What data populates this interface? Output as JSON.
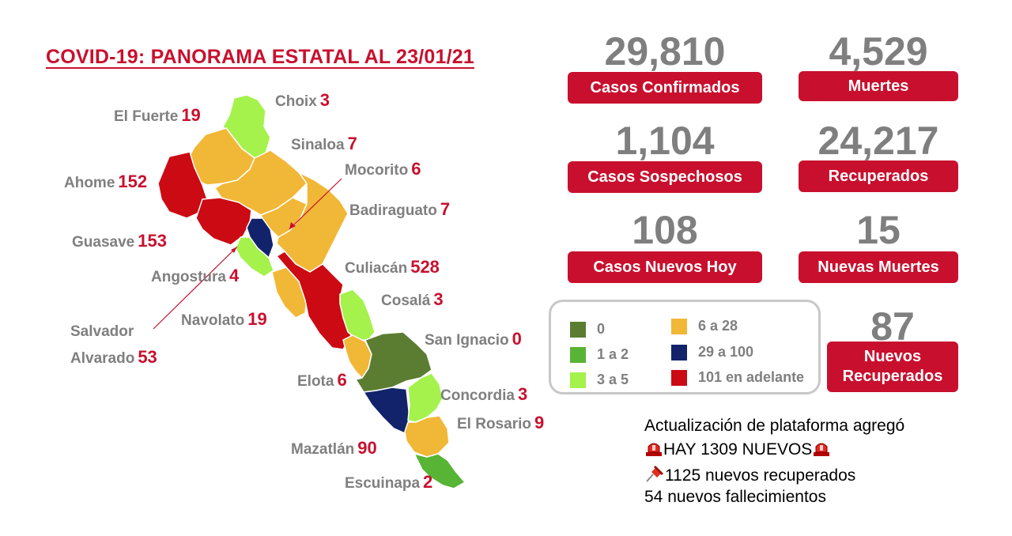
{
  "title": "COVID-19: PANORAMA ESTATAL AL 23/01/21",
  "stats": {
    "confirmados": {
      "value": "29,810",
      "label": "Casos Confirmados"
    },
    "muertes": {
      "value": "4,529",
      "label": "Muertes"
    },
    "sospechosos": {
      "value": "1,104",
      "label": "Casos Sospechosos"
    },
    "recuperados": {
      "value": "24,217",
      "label": "Recuperados"
    },
    "nuevos_hoy": {
      "value": "108",
      "label": "Casos Nuevos Hoy"
    },
    "nuevas_muertes": {
      "value": "15",
      "label": "Nuevas Muertes"
    },
    "nuevos_recuperados": {
      "value": "87",
      "label_line1": "Nuevos",
      "label_line2": "Recuperados"
    }
  },
  "municipalities": {
    "choix": {
      "name": "Choix",
      "value": "3"
    },
    "el_fuerte": {
      "name": "El Fuerte",
      "value": "19"
    },
    "sinaloa": {
      "name": "Sinaloa",
      "value": "7"
    },
    "mocorito": {
      "name": "Mocorito",
      "value": "6"
    },
    "ahome": {
      "name": "Ahome",
      "value": "152"
    },
    "badiraguato": {
      "name": "Badiraguato",
      "value": "7"
    },
    "guasave": {
      "name": "Guasave",
      "value": "153"
    },
    "angostura": {
      "name": "Angostura",
      "value": "4"
    },
    "culiacan": {
      "name": "Culiacán",
      "value": "528"
    },
    "cosala": {
      "name": "Cosalá",
      "value": "3"
    },
    "salvador_alvarado": {
      "name_line1": "Salvador",
      "name_line2": "Alvarado",
      "value": "53"
    },
    "navolato": {
      "name": "Navolato",
      "value": "19"
    },
    "san_ignacio": {
      "name": "San Ignacio",
      "value": "0"
    },
    "elota": {
      "name": "Elota",
      "value": "6"
    },
    "concordia": {
      "name": "Concordia",
      "value": "3"
    },
    "el_rosario": {
      "name": "El Rosario",
      "value": "9"
    },
    "mazatlan": {
      "name": "Mazatlán",
      "value": "90"
    },
    "escuinapa": {
      "name": "Escuinapa",
      "value": "2"
    }
  },
  "legend": [
    {
      "label": "0",
      "color": "#5b7d32"
    },
    {
      "label": "1 a 2",
      "color": "#57b435"
    },
    {
      "label": "3 a 5",
      "color": "#a4f24b"
    },
    {
      "label": "6 a 28",
      "color": "#f1b736"
    },
    {
      "label": "29 a 100",
      "color": "#12236b"
    },
    {
      "label": "101 en adelante",
      "color": "#cc0a14"
    }
  ],
  "notes": {
    "line1": "Actualización de plataforma agregó",
    "line2": "HAY 1309 NUEVOS",
    "line3": "1125 nuevos recuperados",
    "line4": "54 nuevos fallecimientos",
    "icons": [
      "siren-icon",
      "pushpin-icon"
    ]
  }
}
